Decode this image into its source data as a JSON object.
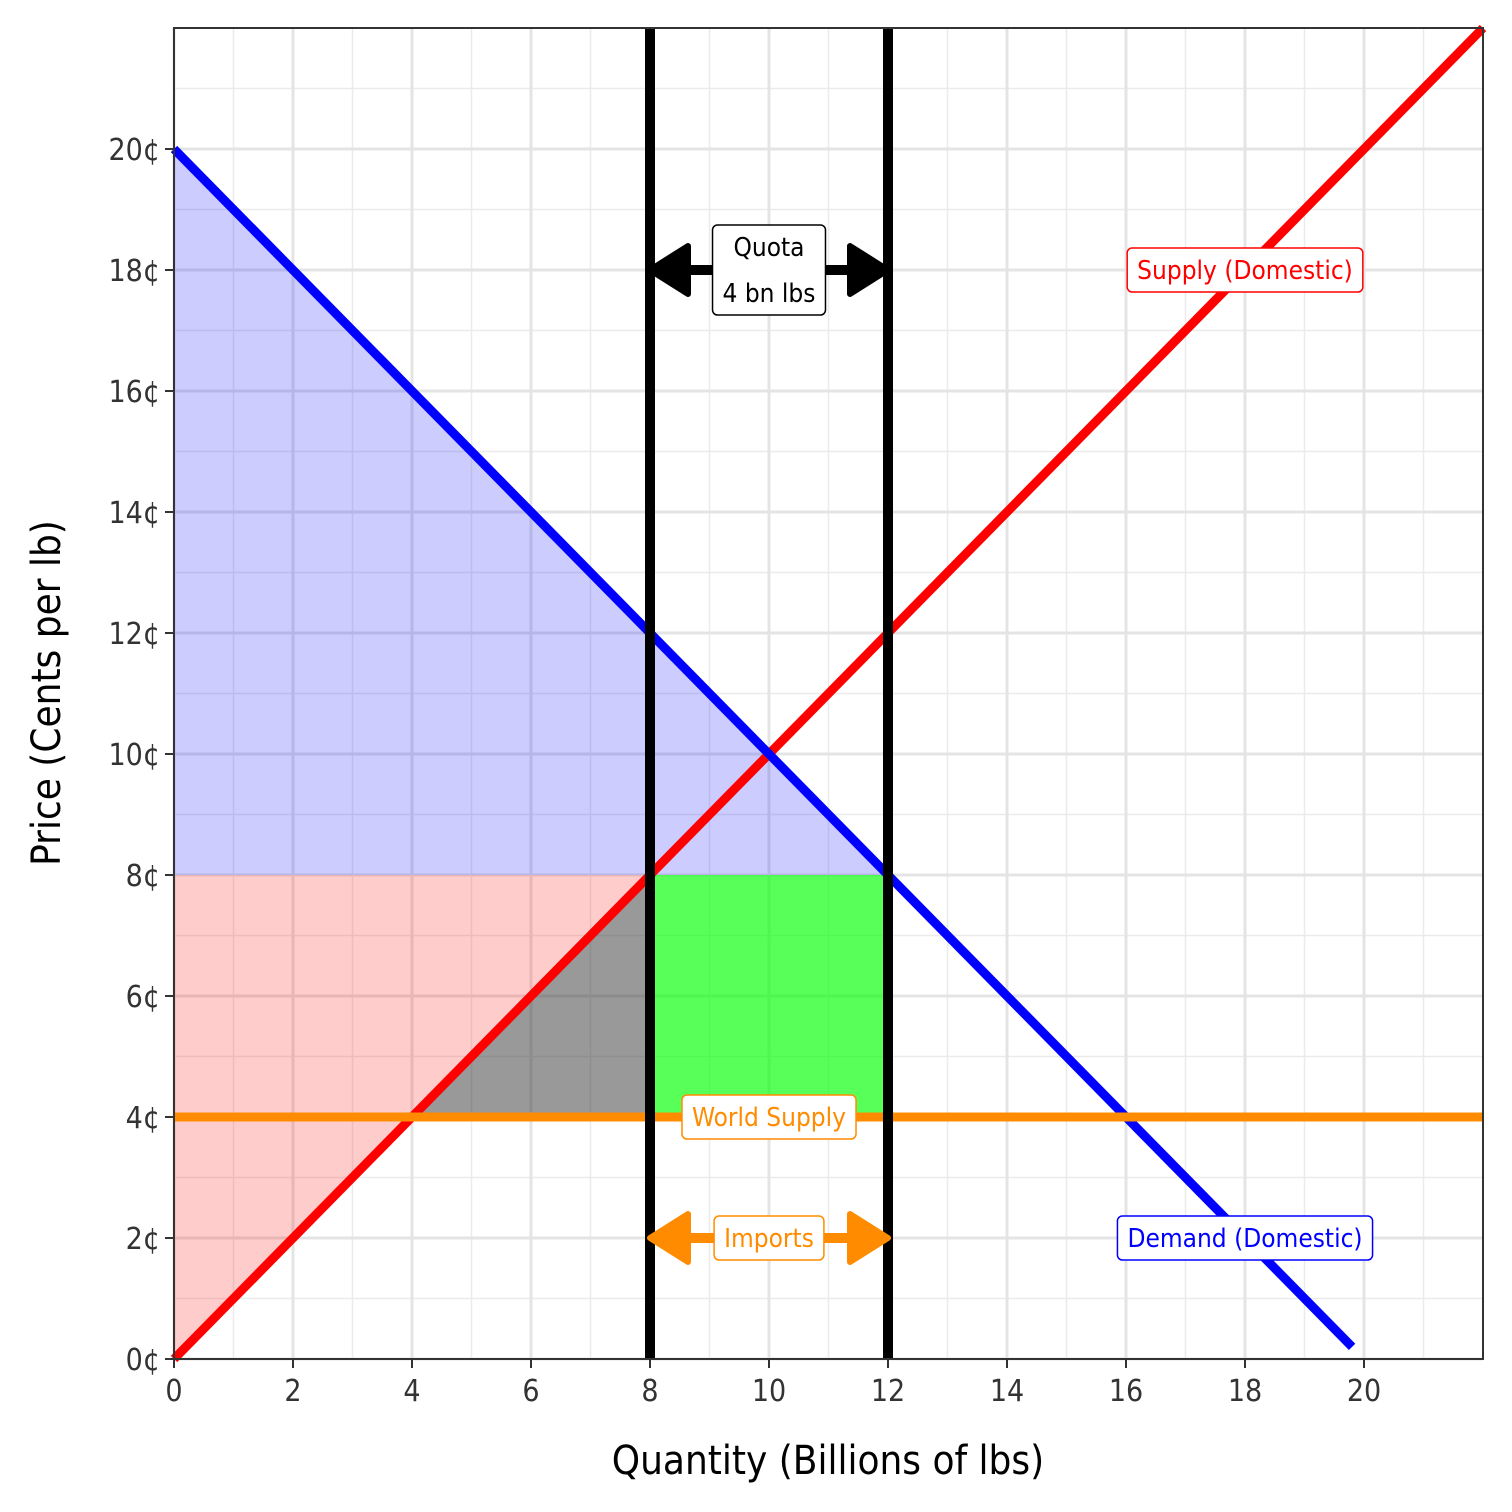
{
  "chart_data": {
    "type": "line",
    "xlabel": "Quantity (Billions of lbs)",
    "ylabel": "Price (Cents per lb)",
    "xlim": [
      0,
      22
    ],
    "ylim": [
      0,
      22
    ],
    "x_ticks": [
      {
        "value": 0,
        "label": "0"
      },
      {
        "value": 2,
        "label": "2"
      },
      {
        "value": 4,
        "label": "4"
      },
      {
        "value": 6,
        "label": "6"
      },
      {
        "value": 8,
        "label": "8"
      },
      {
        "value": 10,
        "label": "10"
      },
      {
        "value": 12,
        "label": "12"
      },
      {
        "value": 14,
        "label": "14"
      },
      {
        "value": 16,
        "label": "16"
      },
      {
        "value": 18,
        "label": "18"
      },
      {
        "value": 20,
        "label": "20"
      }
    ],
    "y_ticks": [
      {
        "value": 0,
        "label": "0¢"
      },
      {
        "value": 2,
        "label": "2¢"
      },
      {
        "value": 4,
        "label": "4¢"
      },
      {
        "value": 6,
        "label": "6¢"
      },
      {
        "value": 8,
        "label": "8¢"
      },
      {
        "value": 10,
        "label": "10¢"
      },
      {
        "value": 12,
        "label": "12¢"
      },
      {
        "value": 14,
        "label": "14¢"
      },
      {
        "value": 16,
        "label": "16¢"
      },
      {
        "value": 18,
        "label": "18¢"
      },
      {
        "value": 20,
        "label": "20¢"
      }
    ],
    "grid": true,
    "areas": [
      {
        "name": "consumer-surplus",
        "color": "#0000ff",
        "opacity": 0.2,
        "points": [
          [
            0,
            20
          ],
          [
            0,
            8
          ],
          [
            12,
            8
          ]
        ]
      },
      {
        "name": "producer-surplus",
        "color": "#ff0000",
        "opacity": 0.2,
        "points": [
          [
            0,
            0
          ],
          [
            0,
            8
          ],
          [
            8,
            8
          ]
        ]
      },
      {
        "name": "deadweight-loss",
        "color": "#333333",
        "opacity": 0.5,
        "points": [
          [
            4,
            4
          ],
          [
            8,
            4
          ],
          [
            8,
            8
          ]
        ]
      },
      {
        "name": "quota-rent",
        "color": "#00ff00",
        "opacity": 0.65,
        "points": [
          [
            8,
            4
          ],
          [
            12,
            4
          ],
          [
            12,
            8
          ],
          [
            8,
            8
          ]
        ]
      }
    ],
    "series": [
      {
        "id": "supply",
        "color": "#ff0000",
        "points": [
          [
            0,
            0
          ],
          [
            22,
            22
          ]
        ]
      },
      {
        "id": "demand",
        "color": "#0000ff",
        "points": [
          [
            0,
            20
          ],
          [
            19.8,
            0.2
          ]
        ]
      },
      {
        "id": "world-supply",
        "color": "#ff8c00",
        "points": [
          [
            0,
            4
          ],
          [
            22,
            4
          ]
        ]
      }
    ],
    "vlines": [
      {
        "x": 8,
        "color": "#000000"
      },
      {
        "x": 12,
        "color": "#000000"
      }
    ],
    "arrows": [
      {
        "name": "quota-arrow",
        "x1": 8,
        "x2": 12,
        "y": 18,
        "color": "#000000"
      },
      {
        "name": "imports-arrow",
        "x1": 8,
        "x2": 12,
        "y": 2,
        "color": "#ff8c00"
      }
    ],
    "annotations": [
      {
        "name": "supply-label",
        "lines": [
          "Supply (Domestic)"
        ],
        "x": 18,
        "y": 18,
        "color": "#ff0000"
      },
      {
        "name": "demand-label",
        "lines": [
          "Demand (Domestic)"
        ],
        "x": 18,
        "y": 2,
        "color": "#0000ff"
      },
      {
        "name": "world-supply-label",
        "lines": [
          "World Supply"
        ],
        "x": 10,
        "y": 4,
        "color": "#ff8c00"
      },
      {
        "name": "imports-label",
        "lines": [
          "Imports"
        ],
        "x": 10,
        "y": 2,
        "color": "#ff8c00"
      },
      {
        "name": "quota-label",
        "lines": [
          "Quota",
          "4 bn lbs"
        ],
        "x": 10,
        "y": 18,
        "color": "#000000"
      }
    ]
  }
}
